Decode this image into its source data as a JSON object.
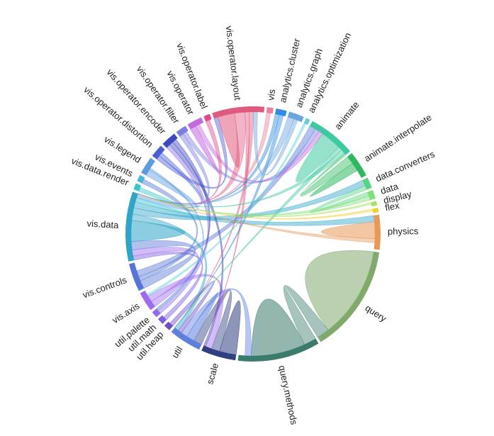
{
  "chart_data": {
    "type": "chord",
    "title": "",
    "groups": [
      {
        "name": "query",
        "value": 50,
        "color": "#82a96c"
      },
      {
        "name": "query.methods",
        "value": 38,
        "color": "#3b7b6c"
      },
      {
        "name": "scale",
        "value": 16,
        "color": "#2f3f7f"
      },
      {
        "name": "util",
        "value": 15,
        "color": "#5d7fdf"
      },
      {
        "name": "util.heap",
        "value": 3,
        "color": "#6a4bc9"
      },
      {
        "name": "util.math",
        "value": 3,
        "color": "#7c5ce0"
      },
      {
        "name": "util.palette",
        "value": 3,
        "color": "#8e6ee8"
      },
      {
        "name": "vis.axis",
        "value": 9,
        "color": "#9b6cf0"
      },
      {
        "name": "vis.controls",
        "value": 13,
        "color": "#5775d8"
      },
      {
        "name": "vis.data",
        "value": 32,
        "color": "#2fa4c9"
      },
      {
        "name": "vis.data.render",
        "value": 3,
        "color": "#33c7c9"
      },
      {
        "name": "vis.events",
        "value": 3,
        "color": "#46b7d9"
      },
      {
        "name": "vis.legend",
        "value": 8,
        "color": "#5b9be0"
      },
      {
        "name": "vis.operator.distortion",
        "value": 6,
        "color": "#4a5ed8"
      },
      {
        "name": "vis.operator.encoder",
        "value": 7,
        "color": "#3c48c0"
      },
      {
        "name": "vis.operator.filter",
        "value": 5,
        "color": "#7d7fe0"
      },
      {
        "name": "vis.operator",
        "value": 7,
        "color": "#c269e0"
      },
      {
        "name": "vis.operator.label",
        "value": 3,
        "color": "#e04a8f"
      },
      {
        "name": "vis.operator.layout",
        "value": 24,
        "color": "#e05a7f"
      },
      {
        "name": "vis",
        "value": 3,
        "color": "#e87f9f"
      },
      {
        "name": "analytics.cluster",
        "value": 5,
        "color": "#2f8ce0"
      },
      {
        "name": "analytics.graph",
        "value": 7,
        "color": "#6aa5e0"
      },
      {
        "name": "analytics.optimization",
        "value": 2,
        "color": "#5fd1e0"
      },
      {
        "name": "animate",
        "value": 22,
        "color": "#3fc9a0"
      },
      {
        "name": "animate.interpolate",
        "value": 12,
        "color": "#2fb85f"
      },
      {
        "name": "data.converters",
        "value": 5,
        "color": "#58d480"
      },
      {
        "name": "data",
        "value": 4,
        "color": "#7fe07a"
      },
      {
        "name": "display",
        "value": 2,
        "color": "#a8e060"
      },
      {
        "name": "flex",
        "value": 2,
        "color": "#f0d030"
      },
      {
        "name": "physics",
        "value": 16,
        "color": "#e8995a"
      }
    ],
    "links": [
      {
        "source": "query",
        "target": "query",
        "value": 44
      },
      {
        "source": "query.methods",
        "target": "query",
        "value": 6
      },
      {
        "source": "query.methods",
        "target": "query.methods",
        "value": 26
      },
      {
        "source": "scale",
        "target": "scale",
        "value": 8
      },
      {
        "source": "scale",
        "target": "util",
        "value": 4
      },
      {
        "source": "util",
        "target": "util",
        "value": 4
      },
      {
        "source": "util",
        "target": "query.methods",
        "value": 3
      },
      {
        "source": "util.heap",
        "target": "util",
        "value": 2
      },
      {
        "source": "util.math",
        "target": "vis.data",
        "value": 2
      },
      {
        "source": "util.palette",
        "target": "vis.operator.encoder",
        "value": 2
      },
      {
        "source": "vis.axis",
        "target": "vis.data",
        "value": 3
      },
      {
        "source": "vis.axis",
        "target": "scale",
        "value": 3
      },
      {
        "source": "vis.controls",
        "target": "vis.data",
        "value": 4
      },
      {
        "source": "vis.controls",
        "target": "vis.events",
        "value": 2
      },
      {
        "source": "vis.controls",
        "target": "animate",
        "value": 3
      },
      {
        "source": "vis.data",
        "target": "vis.data",
        "value": 10
      },
      {
        "source": "vis.data",
        "target": "util",
        "value": 3
      },
      {
        "source": "vis.data",
        "target": "data.converters",
        "value": 3
      },
      {
        "source": "vis.data",
        "target": "physics",
        "value": 3
      },
      {
        "source": "vis.data.render",
        "target": "vis.data",
        "value": 2
      },
      {
        "source": "vis.legend",
        "target": "vis.data",
        "value": 3
      },
      {
        "source": "vis.legend",
        "target": "util.palette",
        "value": 1
      },
      {
        "source": "vis.operator.distortion",
        "target": "vis.operator.layout",
        "value": 2
      },
      {
        "source": "vis.operator.distortion",
        "target": "vis.data",
        "value": 2
      },
      {
        "source": "vis.operator.encoder",
        "target": "scale",
        "value": 2
      },
      {
        "source": "vis.operator.encoder",
        "target": "util.palette",
        "value": 2
      },
      {
        "source": "vis.operator.filter",
        "target": "vis.data",
        "value": 2
      },
      {
        "source": "vis.operator.filter",
        "target": "animate",
        "value": 2
      },
      {
        "source": "vis.operator",
        "target": "vis.operator",
        "value": 3
      },
      {
        "source": "vis.operator",
        "target": "animate",
        "value": 2
      },
      {
        "source": "vis.operator.label",
        "target": "vis.data",
        "value": 2
      },
      {
        "source": "vis.operator.layout",
        "target": "vis.operator.layout",
        "value": 8
      },
      {
        "source": "vis.operator.layout",
        "target": "vis.data",
        "value": 5
      },
      {
        "source": "vis.operator.layout",
        "target": "scale",
        "value": 2
      },
      {
        "source": "vis.operator.layout",
        "target": "util",
        "value": 2
      },
      {
        "source": "vis",
        "target": "vis.data",
        "value": 2
      },
      {
        "source": "analytics.cluster",
        "target": "vis.data",
        "value": 2
      },
      {
        "source": "analytics.cluster",
        "target": "util",
        "value": 2
      },
      {
        "source": "analytics.graph",
        "target": "vis.data",
        "value": 3
      },
      {
        "source": "analytics.graph",
        "target": "vis.operator.layout",
        "value": 2
      },
      {
        "source": "analytics.optimization",
        "target": "vis.axis",
        "value": 1
      },
      {
        "source": "animate",
        "target": "animate",
        "value": 10
      },
      {
        "source": "animate",
        "target": "util",
        "value": 2
      },
      {
        "source": "animate",
        "target": "vis.data",
        "value": 2
      },
      {
        "source": "animate.interpolate",
        "target": "animate",
        "value": 4
      },
      {
        "source": "animate.interpolate",
        "target": "animate.interpolate",
        "value": 4
      },
      {
        "source": "data.converters",
        "target": "data",
        "value": 2
      },
      {
        "source": "data",
        "target": "vis.data",
        "value": 2
      },
      {
        "source": "display",
        "target": "vis.data",
        "value": 1
      },
      {
        "source": "flex",
        "target": "vis.data",
        "value": 1
      },
      {
        "source": "physics",
        "target": "physics",
        "value": 8
      },
      {
        "source": "physics",
        "target": "vis.data",
        "value": 2
      }
    ]
  }
}
